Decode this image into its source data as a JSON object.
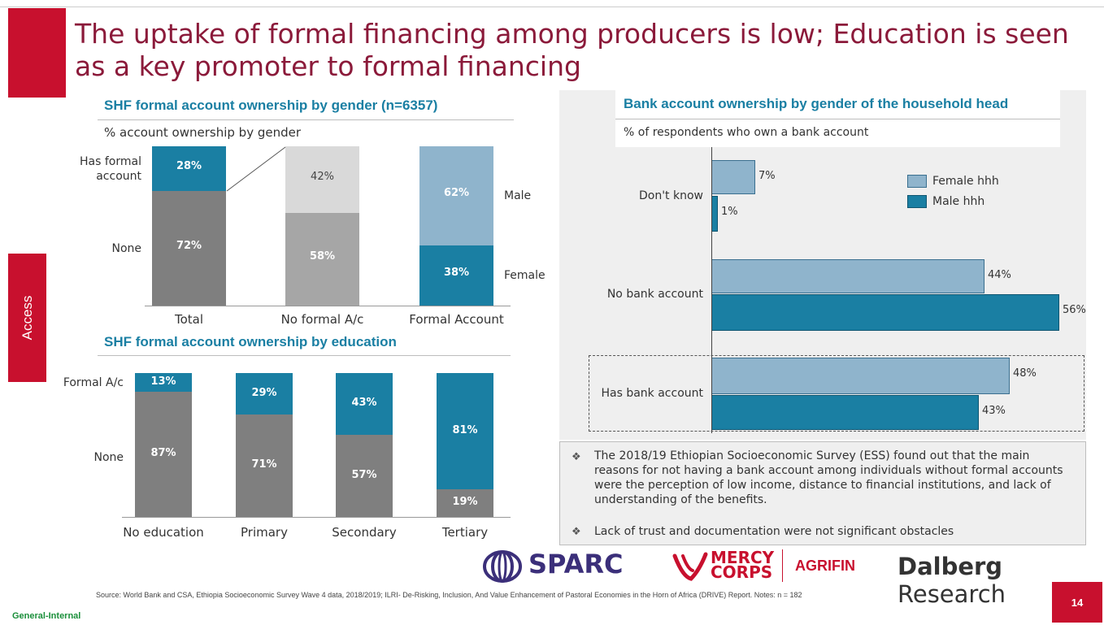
{
  "title": "The uptake of formal financing among producers is low; Education is seen as a key promoter to formal financing",
  "section_tab": "Access",
  "colors": {
    "brand_red": "#c8102e",
    "title_maroon": "#8b1a3a",
    "teal": "#1a7fa3",
    "grey_dark": "#7f7f7f",
    "grey_light": "#d9d9d9",
    "grey_mid": "#a6a6a6",
    "light_blue": "#8fb4cc"
  },
  "chart_data": [
    {
      "type": "bar",
      "title": "SHF formal account ownership by gender (n=6357)",
      "subtitle": "% account ownership by gender",
      "categories": [
        "Total",
        "No formal A/c",
        "Formal Account"
      ],
      "stacked": true,
      "row_labels": [
        "Has formal account",
        "None"
      ],
      "side_labels": [
        "Male",
        "Female"
      ],
      "bars": [
        {
          "top_value": "28%",
          "bottom_value": "72%",
          "top": 28,
          "bottom": 72
        },
        {
          "top_value": "42%",
          "bottom_value": "58%",
          "top": 42,
          "bottom": 58
        },
        {
          "top_value": "62%",
          "bottom_value": "38%",
          "top": 62,
          "bottom": 38
        }
      ]
    },
    {
      "type": "bar",
      "title": "SHF formal account ownership by education",
      "categories": [
        "No education",
        "Primary",
        "Secondary",
        "Tertiary"
      ],
      "stacked": true,
      "row_labels": [
        "Formal A/c",
        "None"
      ],
      "series": [
        {
          "name": "Formal A/c",
          "values": [
            13,
            29,
            43,
            81
          ],
          "labels": [
            "13%",
            "29%",
            "43%",
            "81%"
          ]
        },
        {
          "name": "None",
          "values": [
            87,
            71,
            57,
            19
          ],
          "labels": [
            "87%",
            "71%",
            "57%",
            "19%"
          ]
        }
      ]
    },
    {
      "type": "bar",
      "orientation": "horizontal",
      "title": "Bank account ownership by gender of the household head",
      "subtitle": "% of respondents who own a bank account",
      "categories": [
        "Don't know",
        "No bank account",
        "Has bank account"
      ],
      "legend_position": "top-right",
      "series": [
        {
          "name": "Female hhh",
          "values": [
            7,
            44,
            48
          ],
          "labels": [
            "7%",
            "44%",
            "48%"
          ]
        },
        {
          "name": "Male hhh",
          "values": [
            1,
            56,
            43
          ],
          "labels": [
            "1%",
            "56%",
            "43%"
          ]
        }
      ]
    }
  ],
  "notes": [
    "The 2018/19 Ethiopian Socioeconomic Survey (ESS) found out that the main reasons for not having a bank account among individuals without formal accounts were the perception of low income, distance to financial institutions, and lack of understanding of the benefits.",
    "Lack of trust and documentation were not significant obstacles"
  ],
  "logos": {
    "sparc": "SPARC",
    "mercy_1": "MERCY",
    "mercy_2": "CORPS",
    "agrifin": "AGRIFIN",
    "dalberg_1": "Dalberg",
    "dalberg_2": " Research"
  },
  "source_text": "Source: World Bank and CSA, Ethiopia Socioeconomic Survey Wave 4 data, 2018/2019; ILRI- De-Risking, Inclusion, And Value Enhancement of Pastoral Economies in the Horn of Africa (DRIVE) Report. Notes: n = 182",
  "classification": "General-Internal",
  "page_number": "14"
}
